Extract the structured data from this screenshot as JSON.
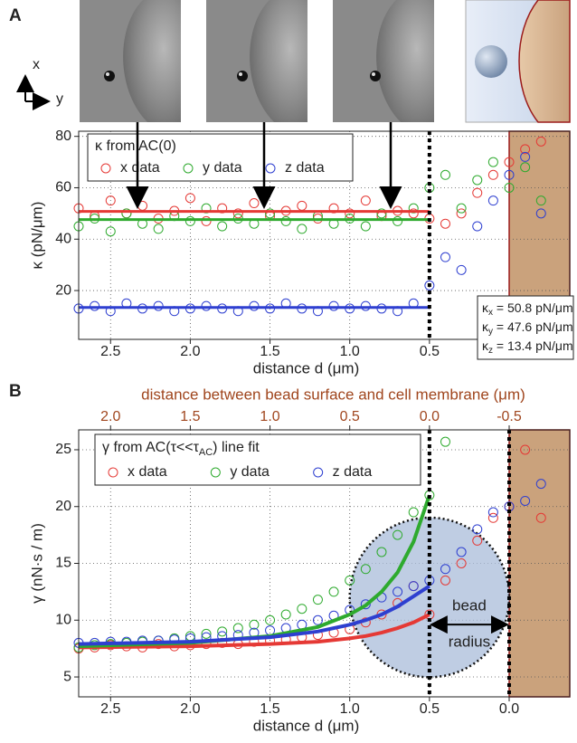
{
  "panel_labels": [
    "A",
    "B"
  ],
  "orientation_labels": {
    "x": "x",
    "y": "y"
  },
  "chart_data": [
    {
      "type": "scatter",
      "xlabel": "distance d (μm)",
      "ylabel": "κ (pN/μm)",
      "legend_title": "κ from AC(0)",
      "xlim": [
        2.7,
        -0.38
      ],
      "ylim": [
        1,
        82
      ],
      "xticks": [
        2.5,
        {
          "value": 2,
          "label": "2.0"
        },
        1.5,
        {
          "value": 1,
          "label": "1.0"
        },
        0.5
      ],
      "yticks": [
        20,
        40,
        60,
        80
      ],
      "grid": true,
      "vlines": [
        0.5
      ],
      "cell_region": [
        0.0,
        -0.38
      ],
      "x": [
        2.7,
        2.6,
        2.5,
        2.4,
        2.3,
        2.2,
        2.1,
        2.0,
        1.9,
        1.8,
        1.7,
        1.6,
        1.5,
        1.4,
        1.3,
        1.2,
        1.1,
        1.0,
        0.9,
        0.8,
        0.7,
        0.6,
        0.5,
        0.4,
        0.3,
        0.2,
        0.1,
        0.0,
        -0.1,
        -0.2
      ],
      "series": [
        {
          "name": "x data",
          "color": "#e53935",
          "fit": 50.8,
          "values": [
            52,
            49,
            55,
            50,
            53,
            48,
            51,
            56,
            47,
            52,
            50,
            54,
            49,
            51,
            53,
            48,
            52,
            50,
            55,
            49,
            51,
            50,
            48,
            46,
            50,
            58,
            65,
            70,
            75,
            78
          ]
        },
        {
          "name": "y data",
          "color": "#2eaa2e",
          "fit": 47.6,
          "values": [
            45,
            48,
            43,
            50,
            46,
            44,
            49,
            47,
            52,
            45,
            48,
            46,
            50,
            47,
            44,
            49,
            46,
            48,
            45,
            50,
            47,
            52,
            60,
            65,
            52,
            63,
            70,
            60,
            68,
            55
          ]
        },
        {
          "name": "z data",
          "color": "#2e3fd0",
          "fit": 13.4,
          "values": [
            13,
            14,
            12,
            15,
            13,
            14,
            12,
            13,
            14,
            13,
            12,
            14,
            13,
            15,
            13,
            12,
            14,
            13,
            14,
            13,
            12,
            15,
            22,
            33,
            28,
            45,
            55,
            65,
            72,
            50
          ]
        }
      ],
      "annotations": [
        {
          "symbol": "κ",
          "sub": "x",
          "text": " = 50.8 pN/μm"
        },
        {
          "symbol": "κ",
          "sub": "y",
          "text": " = 47.6 pN/μm"
        },
        {
          "symbol": "κ",
          "sub": "z",
          "text": " = 13.4 pN/μm"
        }
      ]
    },
    {
      "type": "scatter",
      "xlabel": "distance d (μm)",
      "ylabel": "γ (nN·s / m)",
      "x2label": "distance between bead surface and cell membrane (μm)",
      "legend_title": {
        "main": "γ from AC(τ<<τ",
        "sub": "AC",
        "end": ") line fit"
      },
      "xlim": [
        2.7,
        -0.38
      ],
      "ylim": [
        3.25,
        26.75
      ],
      "x2lim": [
        2.2,
        -0.88
      ],
      "xticks": [
        2.5,
        {
          "value": 2,
          "label": "2.0"
        },
        1.5,
        {
          "value": 1,
          "label": "1.0"
        },
        0.5,
        {
          "value": 0,
          "label": "0.0"
        }
      ],
      "x2ticks": [
        {
          "value": 2,
          "label": "2.0"
        },
        1.5,
        {
          "value": 1,
          "label": "1.0"
        },
        0.5,
        {
          "value": 0,
          "label": "0.0"
        },
        -0.5
      ],
      "yticks": [
        5,
        10,
        15,
        20,
        25
      ],
      "grid": true,
      "vlines": [
        0.5,
        0.0
      ],
      "cell_region": [
        0.0,
        -0.38
      ],
      "bead": {
        "center": [
          0.5,
          12
        ],
        "radius": 0.5,
        "label": [
          "bead",
          "radius"
        ]
      },
      "x": [
        2.7,
        2.6,
        2.5,
        2.4,
        2.3,
        2.2,
        2.1,
        2.0,
        1.9,
        1.8,
        1.7,
        1.6,
        1.5,
        1.4,
        1.3,
        1.2,
        1.1,
        1.0,
        0.9,
        0.8,
        0.7,
        0.6,
        0.5,
        0.4,
        0.3,
        0.2,
        0.1,
        0.0,
        -0.1,
        -0.2
      ],
      "fit_x": [
        2.7,
        2.0,
        1.5,
        1.2,
        1.0,
        0.9,
        0.8,
        0.7,
        0.6,
        0.5
      ],
      "series": [
        {
          "name": "x data",
          "color": "#e53935",
          "values": [
            7.5,
            7.6,
            7.8,
            7.7,
            7.6,
            7.9,
            7.7,
            7.8,
            7.9,
            8.0,
            7.9,
            8.1,
            8.2,
            8.3,
            8.5,
            8.7,
            8.9,
            9.2,
            9.8,
            10.5,
            11.5,
            13,
            10.5,
            13.5,
            15,
            17,
            19,
            20,
            25,
            19
          ],
          "fit": [
            7.6,
            7.7,
            7.9,
            8.1,
            8.4,
            8.6,
            8.9,
            9.3,
            9.8,
            10.5
          ]
        },
        {
          "name": "y data",
          "color": "#2eaa2e",
          "values": [
            7.6,
            7.8,
            7.9,
            8.0,
            8.1,
            8.2,
            8.4,
            8.6,
            8.8,
            9.0,
            9.3,
            9.6,
            10,
            10.5,
            11,
            11.8,
            12.5,
            13.5,
            14.5,
            16,
            17.5,
            19.5,
            21,
            25.7,
            null,
            null,
            null,
            null,
            null,
            null
          ],
          "fit": [
            7.7,
            8.0,
            8.6,
            9.4,
            10.5,
            11.3,
            12.5,
            14.2,
            16.9,
            21
          ]
        },
        {
          "name": "z data",
          "color": "#2e3fd0",
          "values": [
            8,
            8,
            8.1,
            8.1,
            8.2,
            8.2,
            8.3,
            8.4,
            8.5,
            8.6,
            8.7,
            8.9,
            9.1,
            9.3,
            9.6,
            10,
            10.4,
            10.9,
            11.4,
            12,
            12.5,
            13,
            13.5,
            14.5,
            16,
            18,
            19.5,
            20,
            20.5,
            22
          ],
          "fit": [
            7.9,
            8.1,
            8.5,
            9.0,
            9.6,
            10.0,
            10.5,
            11.2,
            12.1,
            13
          ]
        }
      ]
    }
  ]
}
